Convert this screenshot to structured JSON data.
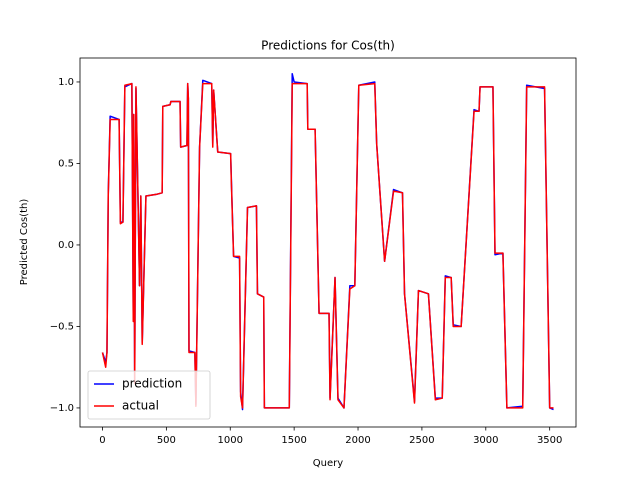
{
  "chart_data": {
    "type": "line",
    "title": "Predictions for Cos(th)",
    "xlabel": "Query",
    "ylabel": "Predicted Cos(th)",
    "x": [
      0,
      25,
      35,
      45,
      60,
      130,
      140,
      160,
      175,
      230,
      241,
      245,
      252,
      262,
      280,
      290,
      300,
      311,
      340,
      420,
      467,
      472,
      529,
      535,
      607,
      612,
      661,
      667,
      672,
      677,
      723,
      731,
      760,
      785,
      855,
      863,
      870,
      902,
      1003,
      1008,
      1026,
      1073,
      1081,
      1096,
      1135,
      1205,
      1213,
      1262,
      1267,
      1462,
      1485,
      1500,
      1602,
      1607,
      1664,
      1695,
      1773,
      1781,
      1820,
      1843,
      1890,
      1936,
      1975,
      2006,
      2131,
      2146,
      2208,
      2278,
      2348,
      2364,
      2442,
      2473,
      2551,
      2605,
      2659,
      2683,
      2729,
      2745,
      2807,
      2908,
      2947,
      2955,
      3056,
      3072,
      3134,
      3165,
      3289,
      3320,
      3460,
      3500,
      3530
    ],
    "series": [
      {
        "name": "prediction",
        "color": "#0000ff",
        "values": [
          -0.66,
          -0.72,
          -0.66,
          0.31,
          0.79,
          0.77,
          0.14,
          0.14,
          0.97,
          0.99,
          -0.45,
          0.8,
          -0.83,
          0.96,
          0.2,
          -0.25,
          0.3,
          -0.6,
          0.3,
          0.31,
          0.32,
          0.85,
          0.86,
          0.88,
          0.88,
          0.6,
          0.61,
          0.99,
          0.9,
          -0.65,
          -0.66,
          -0.98,
          0.6,
          1.01,
          0.99,
          0.61,
          0.95,
          0.57,
          0.56,
          0.42,
          -0.07,
          -0.08,
          -0.9,
          -1.01,
          0.23,
          0.24,
          -0.3,
          -0.32,
          -1.0,
          -1.0,
          1.05,
          1.0,
          0.99,
          0.71,
          0.71,
          -0.42,
          -0.42,
          -0.94,
          -0.2,
          -0.94,
          -1.0,
          -0.25,
          -0.25,
          0.98,
          1.0,
          0.62,
          -0.1,
          0.34,
          0.32,
          -0.3,
          -0.96,
          -0.28,
          -0.3,
          -0.94,
          -0.94,
          -0.19,
          -0.2,
          -0.49,
          -0.5,
          0.83,
          0.82,
          0.97,
          0.97,
          -0.06,
          -0.05,
          -1.0,
          -0.99,
          0.98,
          0.96,
          -1.0,
          -1.01
        ]
      },
      {
        "name": "actual",
        "color": "#ff0000",
        "values": [
          -0.66,
          -0.75,
          -0.66,
          0.3,
          0.77,
          0.77,
          0.13,
          0.14,
          0.98,
          0.99,
          -0.47,
          0.8,
          -0.85,
          0.97,
          0.2,
          -0.25,
          0.3,
          -0.61,
          0.3,
          0.31,
          0.32,
          0.85,
          0.86,
          0.88,
          0.88,
          0.6,
          0.61,
          0.99,
          0.9,
          -0.66,
          -0.66,
          -0.99,
          0.6,
          0.99,
          0.99,
          0.6,
          0.95,
          0.57,
          0.56,
          0.4,
          -0.07,
          -0.07,
          -0.93,
          -1.0,
          0.23,
          0.24,
          -0.3,
          -0.32,
          -1.0,
          -1.0,
          0.99,
          0.99,
          0.99,
          0.71,
          0.71,
          -0.42,
          -0.42,
          -0.95,
          -0.2,
          -0.95,
          -1.0,
          -0.27,
          -0.25,
          0.98,
          0.99,
          0.62,
          -0.1,
          0.33,
          0.32,
          -0.3,
          -0.97,
          -0.28,
          -0.3,
          -0.95,
          -0.94,
          -0.2,
          -0.2,
          -0.5,
          -0.5,
          0.82,
          0.82,
          0.97,
          0.97,
          -0.05,
          -0.05,
          -1.0,
          -1.0,
          0.97,
          0.97,
          -1.0,
          -1.0
        ]
      }
    ],
    "xlim": [
      -176,
      3706
    ],
    "ylim": [
      -1.117,
      1.147
    ],
    "xticks": [
      0,
      500,
      1000,
      1500,
      2000,
      2500,
      3000,
      3500
    ],
    "yticks": [
      {
        "value": -1,
        "label": "−1.0"
      },
      {
        "value": -0.5,
        "label": "−0.5"
      },
      {
        "value": 0,
        "label": "0.0"
      },
      0.5,
      {
        "value": 1,
        "label": "1.0"
      }
    ],
    "legend": "lower left"
  }
}
